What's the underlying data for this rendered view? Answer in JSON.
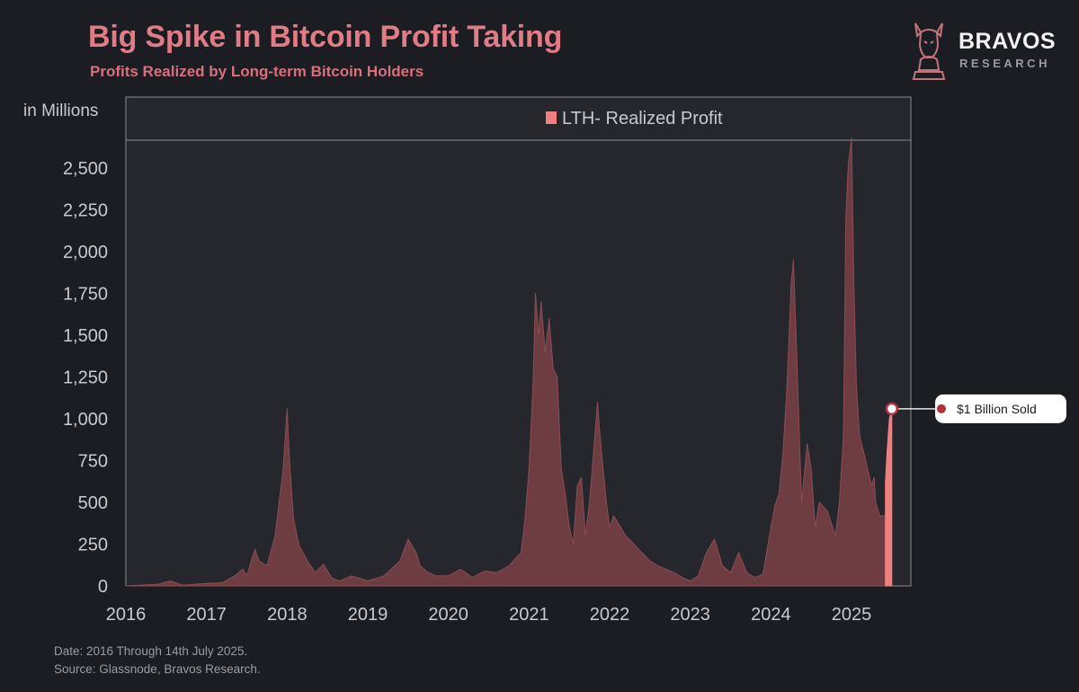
{
  "header": {
    "title": "Big Spike in Bitcoin Profit Taking",
    "subtitle": "Profits Realized by Long-term Bitcoin Holders"
  },
  "logo": {
    "name": "BRAVOS",
    "sub": "RESEARCH",
    "icon": "bull-knight-icon"
  },
  "footer": {
    "date_note": "Date: 2016 Through 14th July 2025.",
    "source_note": "Source: Glassnode, Bravos Research."
  },
  "colors": {
    "background": "#1c1d22",
    "plot_background": "#25272d",
    "area_fill": "#6e3d42",
    "area_stroke": "#8a4d53",
    "highlight": "#f08080",
    "title": "#e07c86",
    "callout_dot": "#b0303d"
  },
  "chart_data": {
    "type": "area",
    "title": "Big Spike in Bitcoin Profit Taking",
    "subtitle": "Profits Realized by Long-term Bitcoin Holders",
    "ylabel": "in Millions",
    "xlabel": "",
    "ylim": [
      0,
      2650
    ],
    "xlim": [
      2016.0,
      2025.7
    ],
    "y_ticks": [
      0,
      250,
      500,
      750,
      1000,
      1250,
      1500,
      1750,
      2000,
      2250,
      2500
    ],
    "y_tick_labels": [
      "0",
      "250",
      "500",
      "750",
      "1,000",
      "1,250",
      "1,500",
      "1,750",
      "2,000",
      "2,250",
      "2,500"
    ],
    "x_ticks": [
      2016,
      2017,
      2018,
      2019,
      2020,
      2021,
      2022,
      2023,
      2024,
      2025
    ],
    "x_tick_labels": [
      "2016",
      "2017",
      "2018",
      "2019",
      "2020",
      "2021",
      "2022",
      "2023",
      "2024",
      "2025"
    ],
    "grid": false,
    "legend_position": "top",
    "series": [
      {
        "name": "LTH- Realized Profit",
        "x": [
          2016.0,
          2016.4,
          2016.55,
          2016.7,
          2017.0,
          2017.2,
          2017.35,
          2017.45,
          2017.5,
          2017.6,
          2017.65,
          2017.75,
          2017.85,
          2017.95,
          2018.0,
          2018.03,
          2018.08,
          2018.15,
          2018.25,
          2018.35,
          2018.45,
          2018.55,
          2018.65,
          2018.8,
          2019.0,
          2019.2,
          2019.4,
          2019.5,
          2019.6,
          2019.65,
          2019.75,
          2019.85,
          2020.0,
          2020.15,
          2020.3,
          2020.45,
          2020.6,
          2020.75,
          2020.9,
          2020.95,
          2021.0,
          2021.05,
          2021.08,
          2021.12,
          2021.15,
          2021.2,
          2021.25,
          2021.3,
          2021.35,
          2021.4,
          2021.45,
          2021.5,
          2021.55,
          2021.6,
          2021.65,
          2021.7,
          2021.75,
          2021.8,
          2021.85,
          2021.88,
          2021.92,
          2021.96,
          2022.0,
          2022.05,
          2022.1,
          2022.2,
          2022.3,
          2022.4,
          2022.5,
          2022.6,
          2022.7,
          2022.8,
          2022.9,
          2023.0,
          2023.1,
          2023.2,
          2023.3,
          2023.4,
          2023.5,
          2023.6,
          2023.7,
          2023.8,
          2023.9,
          2024.0,
          2024.05,
          2024.1,
          2024.15,
          2024.2,
          2024.25,
          2024.28,
          2024.32,
          2024.38,
          2024.45,
          2024.5,
          2024.55,
          2024.6,
          2024.7,
          2024.8,
          2024.85,
          2024.9,
          2024.93,
          2024.96,
          2025.0,
          2025.03,
          2025.06,
          2025.1,
          2025.15,
          2025.2,
          2025.25,
          2025.28,
          2025.3,
          2025.33,
          2025.35,
          2025.4,
          2025.45
        ],
        "values": [
          0,
          10,
          30,
          5,
          15,
          20,
          60,
          100,
          60,
          220,
          150,
          120,
          300,
          700,
          1060,
          750,
          400,
          240,
          150,
          80,
          130,
          50,
          30,
          60,
          30,
          60,
          150,
          280,
          200,
          120,
          80,
          60,
          60,
          100,
          50,
          90,
          80,
          120,
          200,
          400,
          700,
          1200,
          1750,
          1500,
          1700,
          1400,
          1600,
          1300,
          1250,
          700,
          550,
          350,
          250,
          600,
          650,
          300,
          500,
          800,
          1100,
          900,
          700,
          500,
          350,
          420,
          380,
          300,
          250,
          200,
          150,
          120,
          100,
          80,
          50,
          30,
          60,
          200,
          280,
          120,
          80,
          200,
          80,
          50,
          70,
          350,
          480,
          550,
          800,
          1200,
          1800,
          1950,
          1400,
          500,
          850,
          700,
          350,
          500,
          450,
          300,
          500,
          900,
          2200,
          2520,
          2680,
          1800,
          1200,
          900,
          800,
          700,
          600,
          650,
          500,
          450,
          420,
          420,
          420
        ]
      },
      {
        "name": "",
        "x": [
          2025.42,
          2025.44,
          2025.47,
          2025.5
        ],
        "values": [
          620,
          800,
          1000,
          1060
        ]
      }
    ],
    "annotations": [
      {
        "text": "$1 Billion Sold",
        "x": 2025.5,
        "y": 1060
      }
    ]
  }
}
